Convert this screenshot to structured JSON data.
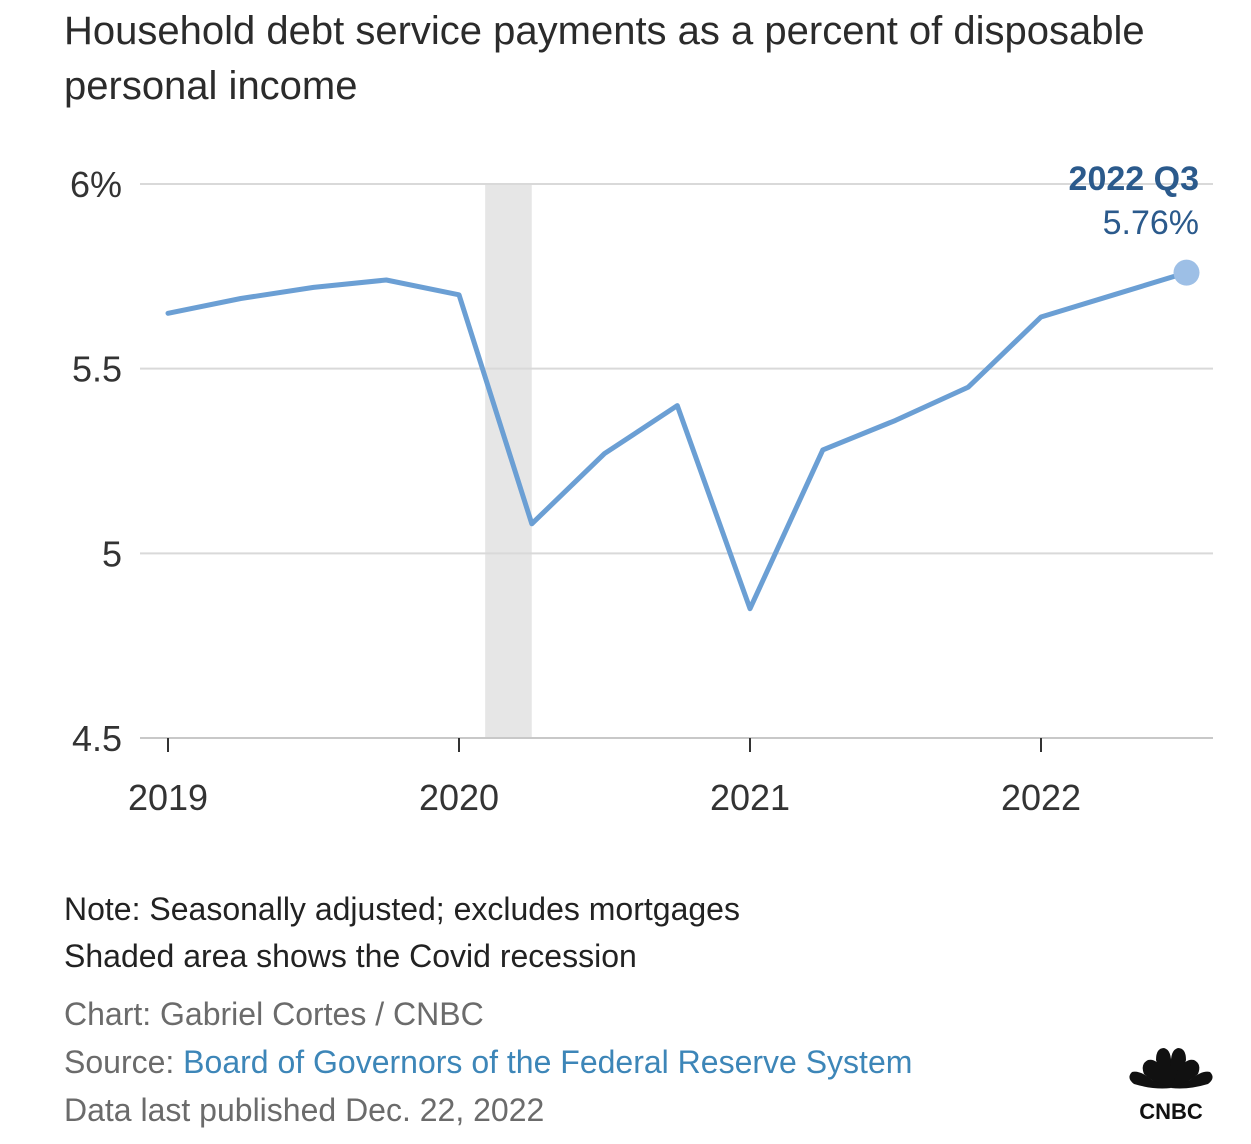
{
  "title": "Household debt service payments as a percent of disposable personal income",
  "chart_data": {
    "type": "line",
    "title": "Household debt service payments as a percent of disposable personal income",
    "unit": "%",
    "ylim": [
      4.5,
      6
    ],
    "yticks": [
      {
        "value": 6,
        "label": "6%"
      },
      {
        "value": 5.5,
        "label": "5.5"
      },
      {
        "value": 5,
        "label": "5"
      },
      {
        "value": 4.5,
        "label": "4.5"
      }
    ],
    "xticks": [
      {
        "value": 2019,
        "label": "2019"
      },
      {
        "value": 2020,
        "label": "2020"
      },
      {
        "value": 2021,
        "label": "2021"
      },
      {
        "value": 2022,
        "label": "2022"
      }
    ],
    "grid": true,
    "shaded_region": {
      "x": [
        2020.09,
        2020.25
      ],
      "color": "#e6e6e6"
    },
    "series": [
      {
        "color": "#6b9fd4",
        "points": [
          {
            "x": 2019.0,
            "label": "2019 Q1",
            "y": 5.65
          },
          {
            "x": 2019.25,
            "label": "2019 Q2",
            "y": 5.69
          },
          {
            "x": 2019.5,
            "label": "2019 Q3",
            "y": 5.72
          },
          {
            "x": 2019.75,
            "label": "2019 Q4",
            "y": 5.74
          },
          {
            "x": 2020.0,
            "label": "2020 Q1",
            "y": 5.7
          },
          {
            "x": 2020.25,
            "label": "2020 Q2",
            "y": 5.08
          },
          {
            "x": 2020.5,
            "label": "2020 Q3",
            "y": 5.27
          },
          {
            "x": 2020.75,
            "label": "2020 Q4",
            "y": 5.4
          },
          {
            "x": 2021.0,
            "label": "2021 Q1",
            "y": 4.85
          },
          {
            "x": 2021.25,
            "label": "2021 Q2",
            "y": 5.28
          },
          {
            "x": 2021.5,
            "label": "2021 Q3",
            "y": 5.36
          },
          {
            "x": 2021.75,
            "label": "2021 Q4",
            "y": 5.45
          },
          {
            "x": 2022.0,
            "label": "2022 Q1",
            "y": 5.64
          },
          {
            "x": 2022.25,
            "label": "2022 Q2",
            "y": 5.7
          },
          {
            "x": 2022.5,
            "label": "2022 Q3",
            "y": 5.76
          }
        ]
      }
    ],
    "annotation": {
      "label": "2022 Q3",
      "value": "5.76%",
      "color": "#2b5a8c"
    }
  },
  "notes": [
    "Note: Seasonally adjusted; excludes mortgages",
    "Shaded area shows the Covid recession"
  ],
  "credit": "Chart: Gabriel Cortes / CNBC",
  "source_prefix": "Source: ",
  "source_link": "Board of Governors of the Federal Reserve System",
  "published": "Data last published Dec. 22, 2022",
  "logo": {
    "name": "CNBC peacock logo",
    "text": "CNBC"
  },
  "colors": {
    "line": "#6b9fd4",
    "annotation": "#2b5a8c",
    "link": "#3d86b8",
    "grid": "#d9d9d9",
    "shade": "#e6e6e6"
  }
}
